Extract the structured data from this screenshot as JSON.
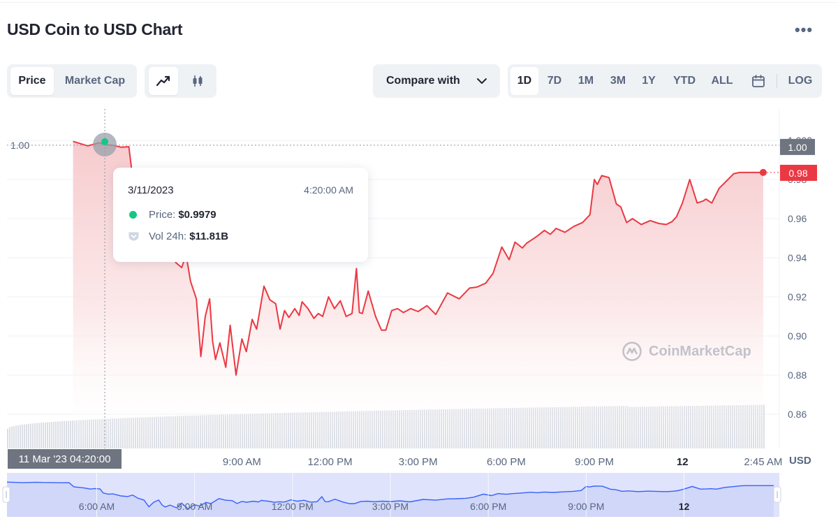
{
  "header": {
    "title": "USD Coin to USD Chart",
    "more_label": "•••"
  },
  "toolbar": {
    "data_tabs": [
      {
        "label": "Price",
        "active": true
      },
      {
        "label": "Market Cap",
        "active": false
      }
    ],
    "chart_types": [
      {
        "icon": "line-chart-icon",
        "active": true
      },
      {
        "icon": "candlestick-chart-icon",
        "active": false
      }
    ],
    "compare_label": "Compare with",
    "ranges": [
      {
        "label": "1D",
        "active": true
      },
      {
        "label": "7D",
        "active": false
      },
      {
        "label": "1M",
        "active": false
      },
      {
        "label": "3M",
        "active": false
      },
      {
        "label": "1Y",
        "active": false
      },
      {
        "label": "YTD",
        "active": false
      },
      {
        "label": "ALL",
        "active": false
      }
    ],
    "calendar_icon": "calendar-icon",
    "log_label": "LOG"
  },
  "tooltip": {
    "date": "3/11/2023",
    "time": "4:20:00 AM",
    "price_label": "Price:",
    "price_value": "$0.9979",
    "vol_label": "Vol 24h:",
    "vol_value": "$11.81B"
  },
  "crosshair": {
    "x_label": "11 Mar '23  04:20:00",
    "left_y_label": "1.00"
  },
  "watermark": "CoinMarketCap",
  "currency_label": "USD",
  "colors": {
    "line": "#ea3943",
    "fill_top": "#f6c8cb",
    "current_badge": "#ea3943",
    "hover_badge": "#6e7480",
    "navigator_fill": "#dfe3fb",
    "navigator_line": "#3861fb",
    "hover_dot": "#16c784"
  },
  "chart_data": {
    "type": "area",
    "title": "USD Coin to USD Chart",
    "ylabel": "USD",
    "ylim": [
      0.845,
      1.005
    ],
    "y_ticks": [
      "1.000",
      "0.98",
      "0.96",
      "0.94",
      "0.92",
      "0.90",
      "0.88",
      "0.86"
    ],
    "x_tick_labels": [
      "9:00 AM",
      "12:00 PM",
      "3:00 PM",
      "6:00 PM",
      "9:00 PM",
      "12",
      "2:45 AM"
    ],
    "x_tick_hours": [
      9,
      12,
      15,
      18,
      21,
      24,
      26.75
    ],
    "navigator_tick_labels": [
      "6:00 AM",
      "9:00 AM",
      "12:00 PM",
      "3:00 PM",
      "6:00 PM",
      "9:00 PM",
      "12"
    ],
    "navigator_tick_hours": [
      6,
      9,
      12,
      15,
      18,
      21,
      24
    ],
    "current_value_label": "0.98",
    "current_value": 0.9836,
    "hover_value_label": "1.00",
    "hover_value": 0.9979,
    "series": [
      {
        "hours": [
          3.25,
          3.75,
          4.15,
          4.33,
          4.6,
          4.9,
          5.15,
          5.3,
          5.6,
          5.8,
          5.95,
          6.1,
          6.2,
          6.35,
          6.5,
          6.75,
          6.95,
          7.1,
          7.25,
          7.45,
          7.6,
          7.75,
          7.9,
          8.0,
          8.1,
          8.25,
          8.45,
          8.6,
          8.8,
          9.0,
          9.15,
          9.35,
          9.5,
          9.75,
          9.95,
          10.15,
          10.3,
          10.45,
          10.6,
          10.8,
          10.95,
          11.05,
          11.25,
          11.45,
          11.6,
          11.75,
          11.95,
          12.15,
          12.35,
          12.55,
          12.75,
          12.9,
          13.0,
          13.1,
          13.3,
          13.55,
          13.75,
          13.9,
          14.1,
          14.3,
          14.5,
          14.75,
          15.0,
          15.3,
          15.6,
          16.0,
          16.4,
          16.75,
          17.0,
          17.3,
          17.55,
          17.85,
          18.1,
          18.3,
          18.55,
          18.7,
          18.85,
          19.05,
          19.3,
          19.5,
          19.7,
          20.0,
          20.3,
          20.6,
          20.85,
          21.0,
          21.1,
          21.25,
          21.5,
          21.75,
          21.9,
          22.1,
          22.3,
          22.6,
          22.9,
          23.2,
          23.45,
          23.65,
          23.8,
          24.0,
          24.25,
          24.5,
          24.7,
          24.8,
          25.0,
          25.25,
          25.55,
          25.75,
          25.95,
          26.2,
          26.45,
          26.6,
          26.75
        ],
        "values": [
          0.9995,
          0.9972,
          0.9988,
          0.9979,
          0.9975,
          0.9965,
          0.9968,
          0.9785,
          0.9738,
          0.9685,
          0.9705,
          0.969,
          0.9505,
          0.9455,
          0.9465,
          0.9375,
          0.935,
          0.9415,
          0.928,
          0.919,
          0.8895,
          0.91,
          0.919,
          0.8975,
          0.888,
          0.8965,
          0.884,
          0.9055,
          0.88,
          0.8985,
          0.892,
          0.9085,
          0.9035,
          0.9255,
          0.9185,
          0.9165,
          0.9035,
          0.913,
          0.9095,
          0.914,
          0.9105,
          0.9175,
          0.914,
          0.909,
          0.9115,
          0.91,
          0.92,
          0.914,
          0.918,
          0.91,
          0.9115,
          0.9345,
          0.912,
          0.9115,
          0.923,
          0.91,
          0.903,
          0.903,
          0.913,
          0.914,
          0.912,
          0.914,
          0.9125,
          0.9155,
          0.911,
          0.922,
          0.919,
          0.9245,
          0.925,
          0.927,
          0.932,
          0.9455,
          0.939,
          0.948,
          0.945,
          0.9475,
          0.949,
          0.951,
          0.954,
          0.952,
          0.955,
          0.953,
          0.956,
          0.958,
          0.962,
          0.98,
          0.9775,
          0.982,
          0.981,
          0.9675,
          0.966,
          0.958,
          0.96,
          0.957,
          0.959,
          0.9575,
          0.957,
          0.9585,
          0.961,
          0.968,
          0.98,
          0.968,
          0.969,
          0.97,
          0.968,
          0.9755,
          0.98,
          0.983,
          0.9836,
          0.9836,
          0.9836,
          0.9836,
          0.9836
        ]
      }
    ]
  }
}
